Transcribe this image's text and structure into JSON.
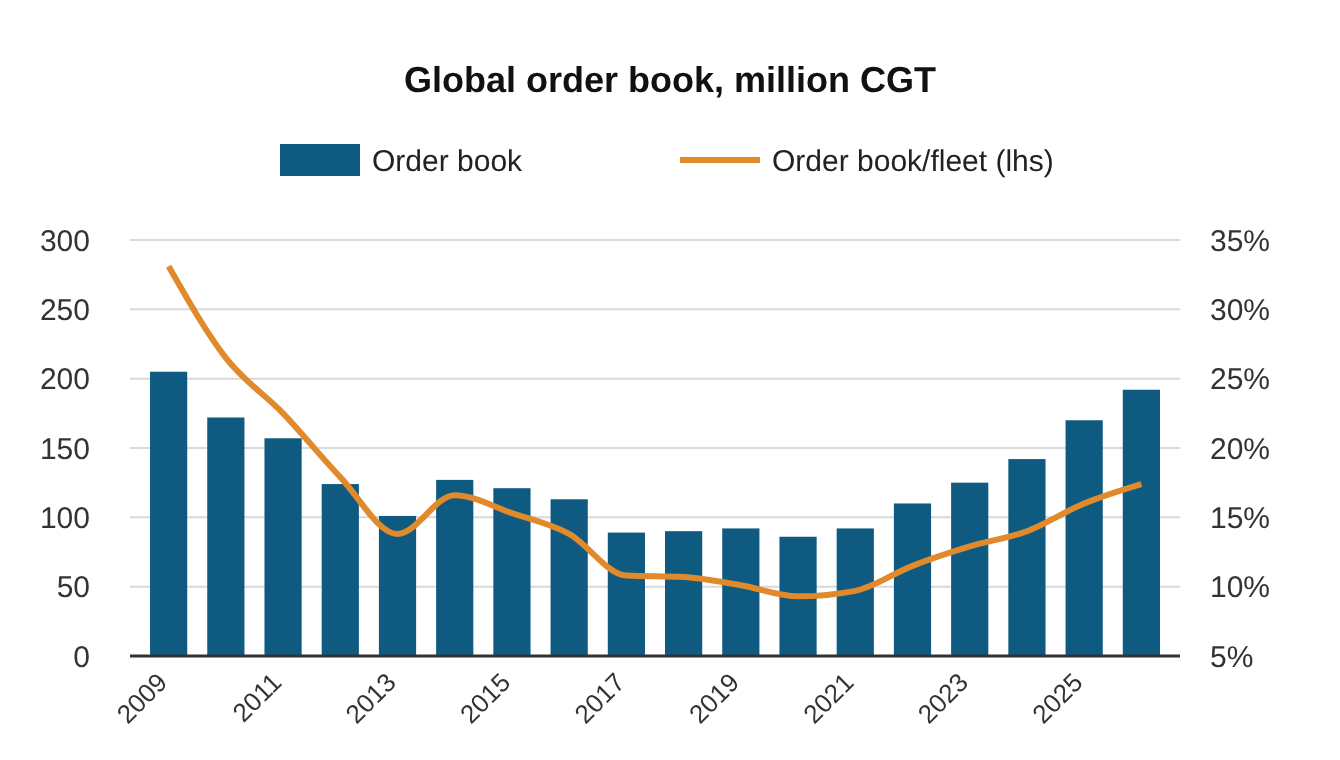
{
  "chart_data": {
    "type": "bar",
    "title": "Global order book, million CGT",
    "categories": [
      "2009",
      null,
      "2011",
      null,
      "2013",
      null,
      "2015",
      null,
      "2017",
      null,
      "2019",
      null,
      "2021",
      null,
      "2023",
      null,
      "2025",
      null
    ],
    "series": [
      {
        "name": "Order book",
        "color": "#0e5a80",
        "values": [
          205,
          172,
          157,
          124,
          101,
          127,
          121,
          113,
          89,
          90,
          92,
          86,
          92,
          110,
          125,
          142,
          170,
          192
        ]
      },
      {
        "name": "Order book/fleet (lhs)",
        "type": "line",
        "axis": "y2",
        "color": "#e08a2c",
        "values": [
          33.1,
          26.5,
          22.5,
          17.9,
          13.8,
          16.6,
          15.3,
          13.8,
          10.8,
          10.7,
          10.1,
          9.3,
          9.7,
          11.5,
          12.9,
          14.0,
          16.0,
          17.4
        ]
      }
    ],
    "ylim": [
      0,
      300
    ],
    "yticks": [
      0,
      50,
      100,
      150,
      200,
      250,
      300
    ],
    "y2lim": [
      5,
      35
    ],
    "y2ticks": [
      {
        "value": 5,
        "label": "5%"
      },
      {
        "value": 10,
        "label": "10%"
      },
      {
        "value": 15,
        "label": "15%"
      },
      {
        "value": 20,
        "label": "20%"
      },
      {
        "value": 25,
        "label": "25%"
      },
      {
        "value": 30,
        "label": "30%"
      },
      {
        "value": 35,
        "label": "35%"
      }
    ],
    "grid": "y",
    "legend": "top",
    "marker": "none"
  }
}
